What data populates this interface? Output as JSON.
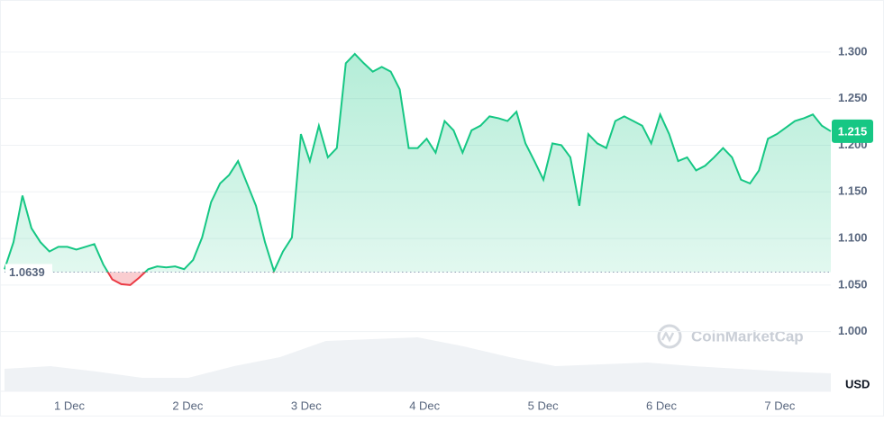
{
  "chart_data": {
    "type": "line",
    "series": [
      {
        "name": "price",
        "color": "#16c784",
        "below_color": "#ea3943",
        "values": [
          1.067,
          1.096,
          1.146,
          1.111,
          1.096,
          1.086,
          1.091,
          1.091,
          1.088,
          1.091,
          1.094,
          1.072,
          1.056,
          1.051,
          1.05,
          1.058,
          1.067,
          1.07,
          1.069,
          1.07,
          1.067,
          1.077,
          1.101,
          1.139,
          1.159,
          1.168,
          1.183,
          1.159,
          1.135,
          1.096,
          1.065,
          1.086,
          1.101,
          1.212,
          1.183,
          1.221,
          1.187,
          1.197,
          1.288,
          1.298,
          1.288,
          1.279,
          1.284,
          1.279,
          1.26,
          1.197,
          1.197,
          1.207,
          1.192,
          1.226,
          1.216,
          1.192,
          1.216,
          1.221,
          1.231,
          1.229,
          1.226,
          1.236,
          1.202,
          1.183,
          1.163,
          1.202,
          1.2,
          1.187,
          1.135,
          1.212,
          1.202,
          1.197,
          1.226,
          1.231,
          1.226,
          1.221,
          1.202,
          1.233,
          1.212,
          1.183,
          1.187,
          1.173,
          1.178,
          1.187,
          1.197,
          1.187,
          1.163,
          1.159,
          1.173,
          1.207,
          1.212,
          1.219,
          1.226,
          1.229,
          1.233,
          1.221,
          1.215
        ]
      }
    ],
    "volume": {
      "color": "#eff2f5",
      "values": [
        25,
        28,
        22,
        15,
        15,
        28,
        38,
        56,
        58,
        60,
        50,
        38,
        28,
        30,
        32,
        28,
        25,
        22,
        20
      ]
    },
    "x_labels": [
      "1 Dec",
      "2 Dec",
      "3 Dec",
      "4 Dec",
      "5 Dec",
      "6 Dec",
      "7 Dec"
    ],
    "reference": 1.0639,
    "current_price": 1.215,
    "unit": "USD",
    "watermark": "CoinMarketCap",
    "ylim": [
      0.936,
      1.351
    ],
    "yticks": [
      {
        "value": 1.0,
        "label": "1.000"
      },
      {
        "value": 1.05,
        "label": "1.050"
      },
      {
        "value": 1.1,
        "label": "1.100"
      },
      {
        "value": 1.15,
        "label": "1.150"
      },
      {
        "value": 1.2,
        "label": "1.200"
      },
      {
        "value": 1.25,
        "label": "1.250"
      },
      {
        "value": 1.3,
        "label": "1.300"
      }
    ],
    "grid": true
  }
}
